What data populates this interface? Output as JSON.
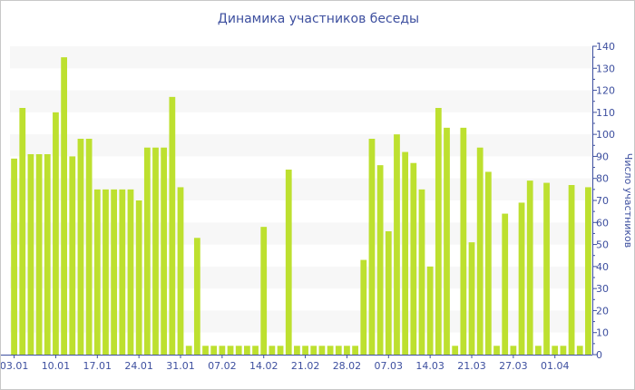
{
  "chart_data": {
    "type": "bar",
    "title": "Динамика участников беседы",
    "xlabel": "",
    "ylabel": "Число участников",
    "ylim": [
      0,
      140
    ],
    "yticks": [
      0,
      10,
      20,
      30,
      40,
      50,
      60,
      70,
      80,
      90,
      100,
      110,
      120,
      130,
      140
    ],
    "y_axis_position": "right",
    "grid": "alternating horizontal bands",
    "x_tick_labels": [
      {
        "bar": 0,
        "label": "03.01"
      },
      {
        "bar": 5,
        "label": "10.01"
      },
      {
        "bar": 10,
        "label": "17.01"
      },
      {
        "bar": 15,
        "label": "24.01"
      },
      {
        "bar": 20,
        "label": "31.01"
      },
      {
        "bar": 25,
        "label": "07.02"
      },
      {
        "bar": 30,
        "label": "14.02"
      },
      {
        "bar": 35,
        "label": "21.02"
      },
      {
        "bar": 40,
        "label": "28.02"
      },
      {
        "bar": 45,
        "label": "07.03"
      },
      {
        "bar": 50,
        "label": "14.03"
      },
      {
        "bar": 55,
        "label": "21.03"
      },
      {
        "bar": 60,
        "label": "27.03"
      },
      {
        "bar": 65,
        "label": "01.04"
      }
    ],
    "values": [
      89,
      112,
      91,
      91,
      91,
      110,
      135,
      90,
      98,
      98,
      75,
      75,
      75,
      75,
      75,
      70,
      94,
      94,
      94,
      117,
      76,
      4,
      53,
      4,
      4,
      4,
      4,
      4,
      4,
      4,
      58,
      4,
      4,
      84,
      4,
      4,
      4,
      4,
      4,
      4,
      4,
      4,
      43,
      98,
      86,
      56,
      100,
      92,
      87,
      75,
      40,
      112,
      103,
      4,
      103,
      51,
      94,
      83,
      4,
      64,
      4,
      69,
      79,
      4,
      78,
      4,
      4,
      77,
      4,
      76
    ],
    "bar_color": "#bde02f",
    "axis_color": "#3d4f9f",
    "band_color": "#f7f7f7"
  }
}
